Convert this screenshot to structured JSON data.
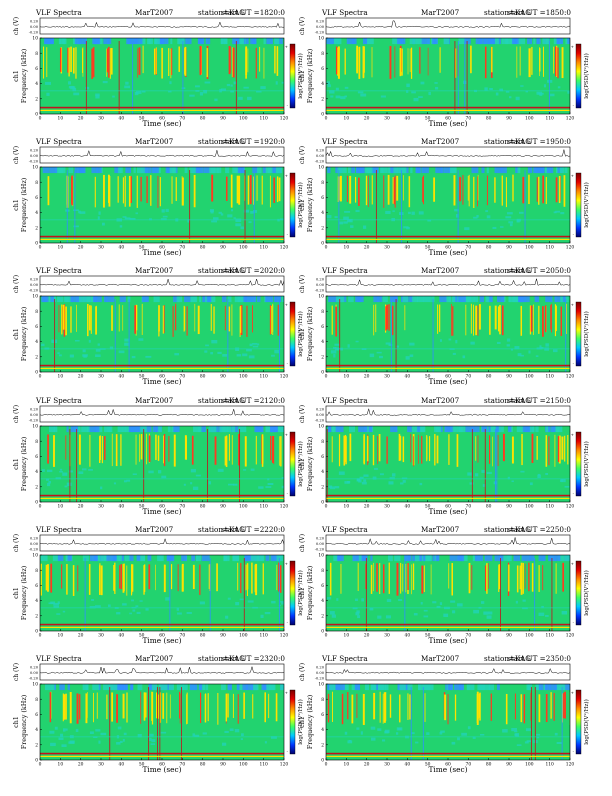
{
  "chart_data": [
    {
      "type": "heatmap",
      "title_left": "VLF Spectra",
      "campaign": "MarT2007",
      "station": "station=KAG",
      "start": "start  UT  =1820:0",
      "xlabel": "Time  (sec)",
      "ylabel": "Frequency  (kHz)",
      "channel": "ch1",
      "top_ylabel": "ch (V)",
      "cbar_label": "log(PSD(V²/Hz))",
      "xlim": [
        0,
        120
      ],
      "ylim": [
        0,
        10
      ],
      "xticks": [
        0,
        10,
        20,
        30,
        40,
        50,
        60,
        70,
        80,
        90,
        100,
        110,
        120
      ],
      "yticks": [
        0,
        2,
        4,
        6,
        8,
        10
      ],
      "top_yticks": [
        "0.20",
        "0.00",
        "-0.20"
      ],
      "cbar_ticks": [
        "+",
        "-"
      ]
    },
    {
      "type": "heatmap",
      "title_left": "VLF Spectra",
      "campaign": "MarT2007",
      "station": "station=KAG",
      "start": "start  UT  =1850:0",
      "xlabel": "Time  (sec)",
      "ylabel": "Frequency  (kHz)",
      "channel": "ch1",
      "top_ylabel": "ch (V)",
      "cbar_label": "log(PSD(V²/Hz))",
      "xlim": [
        0,
        120
      ],
      "ylim": [
        0,
        10
      ],
      "xticks": [
        0,
        10,
        20,
        30,
        40,
        50,
        60,
        70,
        80,
        90,
        100,
        110,
        120
      ],
      "yticks": [
        0,
        2,
        4,
        6,
        8,
        10
      ],
      "top_yticks": [
        "0.20",
        "0.00",
        "-0.20"
      ],
      "cbar_ticks": [
        "+",
        "-"
      ]
    },
    {
      "type": "heatmap",
      "title_left": "VLF Spectra",
      "campaign": "MarT2007",
      "station": "station=KAG",
      "start": "start  UT  =1920:0",
      "xlabel": "Time  (sec)",
      "ylabel": "Frequency  (kHz)",
      "channel": "ch1",
      "top_ylabel": "ch (V)",
      "cbar_label": "log(PSD(V²/Hz))",
      "xlim": [
        0,
        120
      ],
      "ylim": [
        0,
        10
      ],
      "xticks": [
        0,
        10,
        20,
        30,
        40,
        50,
        60,
        70,
        80,
        90,
        100,
        110,
        120
      ],
      "yticks": [
        0,
        2,
        4,
        6,
        8,
        10
      ],
      "top_yticks": [
        "0.20",
        "0.00",
        "-0.20"
      ],
      "cbar_ticks": [
        "+",
        "-"
      ]
    },
    {
      "type": "heatmap",
      "title_left": "VLF Spectra",
      "campaign": "MarT2007",
      "station": "station=KAG",
      "start": "start  UT  =1950:0",
      "xlabel": "Time  (sec)",
      "ylabel": "Frequency  (kHz)",
      "channel": "ch1",
      "top_ylabel": "ch (V)",
      "cbar_label": "log(PSD(V²/Hz))",
      "xlim": [
        0,
        120
      ],
      "ylim": [
        0,
        10
      ],
      "xticks": [
        0,
        10,
        20,
        30,
        40,
        50,
        60,
        70,
        80,
        90,
        100,
        110,
        120
      ],
      "yticks": [
        0,
        2,
        4,
        6,
        8,
        10
      ],
      "top_yticks": [
        "0.20",
        "0.00",
        "-0.20"
      ],
      "cbar_ticks": [
        "+",
        "-"
      ]
    },
    {
      "type": "heatmap",
      "title_left": "VLF Spectra",
      "campaign": "MarT2007",
      "station": "station=KAG",
      "start": "start  UT  =2020:0",
      "xlabel": "Time  (sec)",
      "ylabel": "Frequency  (kHz)",
      "channel": "ch1",
      "top_ylabel": "ch (V)",
      "cbar_label": "log(PSD(V²/Hz))",
      "xlim": [
        0,
        120
      ],
      "ylim": [
        0,
        10
      ],
      "xticks": [
        0,
        10,
        20,
        30,
        40,
        50,
        60,
        70,
        80,
        90,
        100,
        110,
        120
      ],
      "yticks": [
        0,
        2,
        4,
        6,
        8,
        10
      ],
      "top_yticks": [
        "0.20",
        "0.00",
        "-0.20"
      ],
      "cbar_ticks": [
        "+",
        "-"
      ]
    },
    {
      "type": "heatmap",
      "title_left": "VLF Spectra",
      "campaign": "MarT2007",
      "station": "station=KAG",
      "start": "start  UT  =2050:0",
      "xlabel": "Time  (sec)",
      "ylabel": "Frequency  (kHz)",
      "channel": "ch1",
      "top_ylabel": "ch (V)",
      "cbar_label": "log(PSD(V²/Hz))",
      "xlim": [
        0,
        120
      ],
      "ylim": [
        0,
        10
      ],
      "xticks": [
        0,
        10,
        20,
        30,
        40,
        50,
        60,
        70,
        80,
        90,
        100,
        110,
        120
      ],
      "yticks": [
        0,
        2,
        4,
        6,
        8,
        10
      ],
      "top_yticks": [
        "0.20",
        "0.00",
        "-0.20"
      ],
      "cbar_ticks": [
        "+",
        "-"
      ]
    },
    {
      "type": "heatmap",
      "title_left": "VLF Spectra",
      "campaign": "MarT2007",
      "station": "station=KAG",
      "start": "start  UT  =2120:0",
      "xlabel": "Time  (sec)",
      "ylabel": "Frequency  (kHz)",
      "channel": "ch1",
      "top_ylabel": "ch (V)",
      "cbar_label": "log(PSD(V²/Hz))",
      "xlim": [
        0,
        120
      ],
      "ylim": [
        0,
        10
      ],
      "xticks": [
        0,
        10,
        20,
        30,
        40,
        50,
        60,
        70,
        80,
        90,
        100,
        110,
        120
      ],
      "yticks": [
        0,
        2,
        4,
        6,
        8,
        10
      ],
      "top_yticks": [
        "0.20",
        "0.00",
        "-0.20"
      ],
      "cbar_ticks": [
        "+",
        "-"
      ]
    },
    {
      "type": "heatmap",
      "title_left": "VLF Spectra",
      "campaign": "MarT2007",
      "station": "station=KAG",
      "start": "start  UT  =2150:0",
      "xlabel": "Time  (sec)",
      "ylabel": "Frequency  (kHz)",
      "channel": "ch1",
      "top_ylabel": "ch (V)",
      "cbar_label": "log(PSD(V²/Hz))",
      "xlim": [
        0,
        120
      ],
      "ylim": [
        0,
        10
      ],
      "xticks": [
        0,
        10,
        20,
        30,
        40,
        50,
        60,
        70,
        80,
        90,
        100,
        110,
        120
      ],
      "yticks": [
        0,
        2,
        4,
        6,
        8,
        10
      ],
      "top_yticks": [
        "0.20",
        "0.00",
        "-0.20"
      ],
      "cbar_ticks": [
        "+",
        "-"
      ]
    },
    {
      "type": "heatmap",
      "title_left": "VLF Spectra",
      "campaign": "MarT2007",
      "station": "station=KAG",
      "start": "start  UT  =2220:0",
      "xlabel": "Time  (sec)",
      "ylabel": "Frequency  (kHz)",
      "channel": "ch1",
      "top_ylabel": "ch (V)",
      "cbar_label": "log(PSD(V²/Hz))",
      "xlim": [
        0,
        120
      ],
      "ylim": [
        0,
        10
      ],
      "xticks": [
        0,
        10,
        20,
        30,
        40,
        50,
        60,
        70,
        80,
        90,
        100,
        110,
        120
      ],
      "yticks": [
        0,
        2,
        4,
        6,
        8,
        10
      ],
      "top_yticks": [
        "0.20",
        "0.00",
        "-0.20"
      ],
      "cbar_ticks": [
        "+",
        "-"
      ]
    },
    {
      "type": "heatmap",
      "title_left": "VLF Spectra",
      "campaign": "MarT2007",
      "station": "station=KAG",
      "start": "start  UT  =2250:0",
      "xlabel": "Time  (sec)",
      "ylabel": "Frequency  (kHz)",
      "channel": "ch1",
      "top_ylabel": "ch (V)",
      "cbar_label": "log(PSD(V²/Hz))",
      "xlim": [
        0,
        120
      ],
      "ylim": [
        0,
        10
      ],
      "xticks": [
        0,
        10,
        20,
        30,
        40,
        50,
        60,
        70,
        80,
        90,
        100,
        110,
        120
      ],
      "yticks": [
        0,
        2,
        4,
        6,
        8,
        10
      ],
      "top_yticks": [
        "0.20",
        "0.00",
        "-0.20"
      ],
      "cbar_ticks": [
        "+",
        "-"
      ]
    },
    {
      "type": "heatmap",
      "title_left": "VLF Spectra",
      "campaign": "MarT2007",
      "station": "station=KAG",
      "start": "start  UT  =2320:0",
      "xlabel": "Time  (sec)",
      "ylabel": "Frequency  (kHz)",
      "channel": "ch1",
      "top_ylabel": "ch (V)",
      "cbar_label": "log(PSD(V²/Hz))",
      "xlim": [
        0,
        120
      ],
      "ylim": [
        0,
        10
      ],
      "xticks": [
        0,
        10,
        20,
        30,
        40,
        50,
        60,
        70,
        80,
        90,
        100,
        110,
        120
      ],
      "yticks": [
        0,
        2,
        4,
        6,
        8,
        10
      ],
      "top_yticks": [
        "0.20",
        "0.00",
        "-0.20"
      ],
      "cbar_ticks": [
        "+",
        "-"
      ]
    },
    {
      "type": "heatmap",
      "title_left": "VLF Spectra",
      "campaign": "MarT2007",
      "station": "station=KAG",
      "start": "start  UT  =2350:0",
      "xlabel": "Time  (sec)",
      "ylabel": "Frequency  (kHz)",
      "channel": "ch1",
      "top_ylabel": "ch (V)",
      "cbar_label": "log(PSD(V²/Hz))",
      "xlim": [
        0,
        120
      ],
      "ylim": [
        0,
        10
      ],
      "xticks": [
        0,
        10,
        20,
        30,
        40,
        50,
        60,
        70,
        80,
        90,
        100,
        110,
        120
      ],
      "yticks": [
        0,
        2,
        4,
        6,
        8,
        10
      ],
      "top_yticks": [
        "0.20",
        "0.00",
        "-0.20"
      ],
      "cbar_ticks": [
        "+",
        "-"
      ]
    }
  ],
  "colors": {
    "background": "#ffffff",
    "spectrogram_base": "#22d36f",
    "noise_low": "#2f8fff",
    "noise_mid": "#22d3b8",
    "burst_high": "#ffe100",
    "burst_peak": "#ff3b1f",
    "line_peak": "#c3141c",
    "colorbar": [
      "#00006a",
      "#0036ff",
      "#00c8ff",
      "#3cff62",
      "#ffff00",
      "#ff8a00",
      "#e50000",
      "#7a0000"
    ]
  }
}
